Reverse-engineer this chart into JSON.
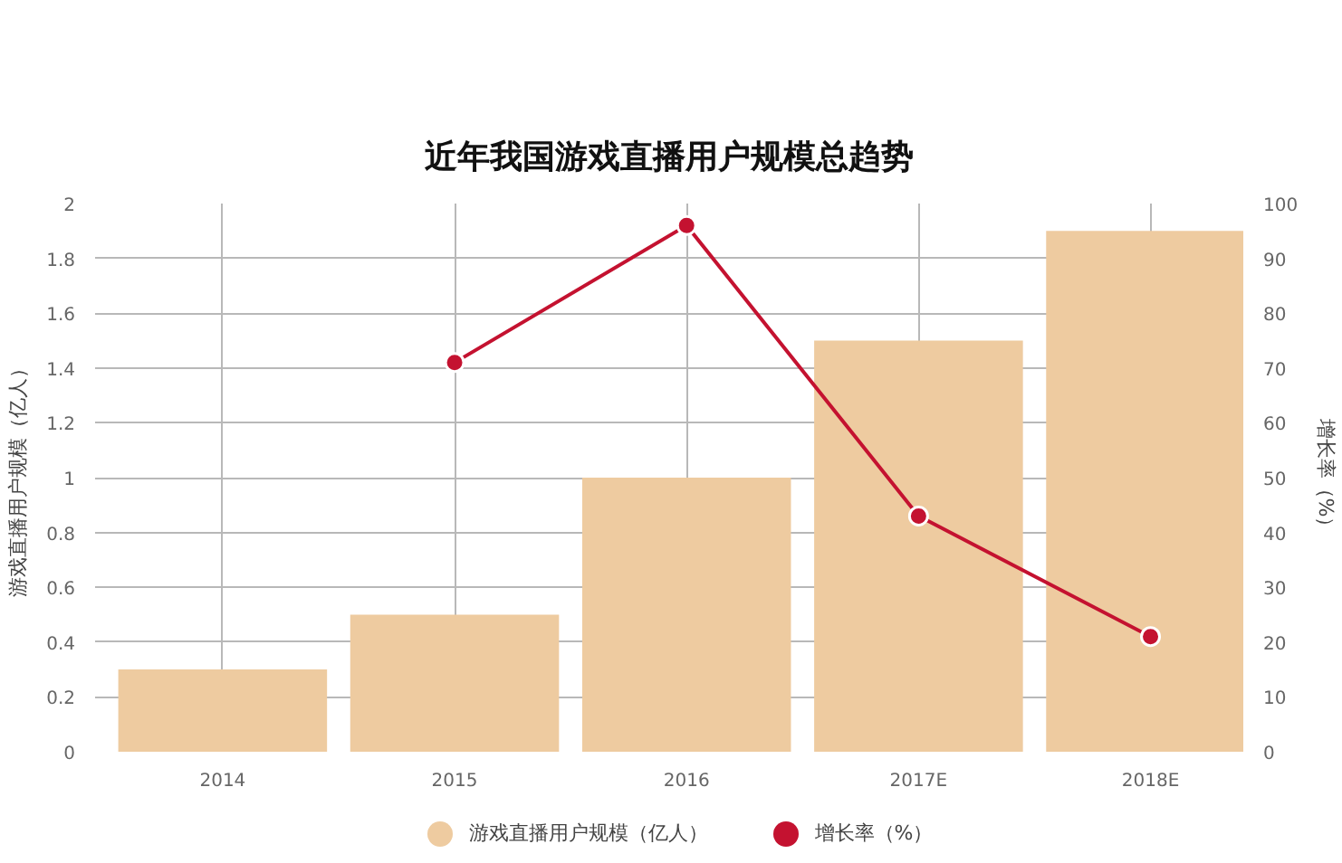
{
  "chart_data": {
    "type": "bar",
    "title": "近年我国游戏直播用户规模总趋势",
    "ylabel": "游戏直播用户规模（亿人）",
    "y2label": "增长率（%）",
    "categories": [
      "2014",
      "2015",
      "2016",
      "2017E",
      "2018E"
    ],
    "series": [
      {
        "name": "游戏直播用户规模（亿人）",
        "color": "#eecba0",
        "values": [
          0.3,
          0.5,
          1.0,
          1.5,
          1.9
        ]
      },
      {
        "name": "增长率（%）",
        "type": "line",
        "axis": "y2",
        "color": "#c41230",
        "values": [
          null,
          71,
          96,
          43,
          21
        ]
      }
    ],
    "ylim": [
      0,
      2
    ],
    "yticks": [
      0,
      0.2,
      0.4,
      0.6,
      0.8,
      1,
      1.2,
      1.4,
      1.6,
      1.8,
      2
    ],
    "y2lim": [
      0,
      100
    ],
    "y2ticks": [
      0,
      10,
      20,
      30,
      40,
      50,
      60,
      70,
      80,
      90,
      100
    ],
    "grid": true,
    "legend": "bottom",
    "marker": "circle"
  }
}
